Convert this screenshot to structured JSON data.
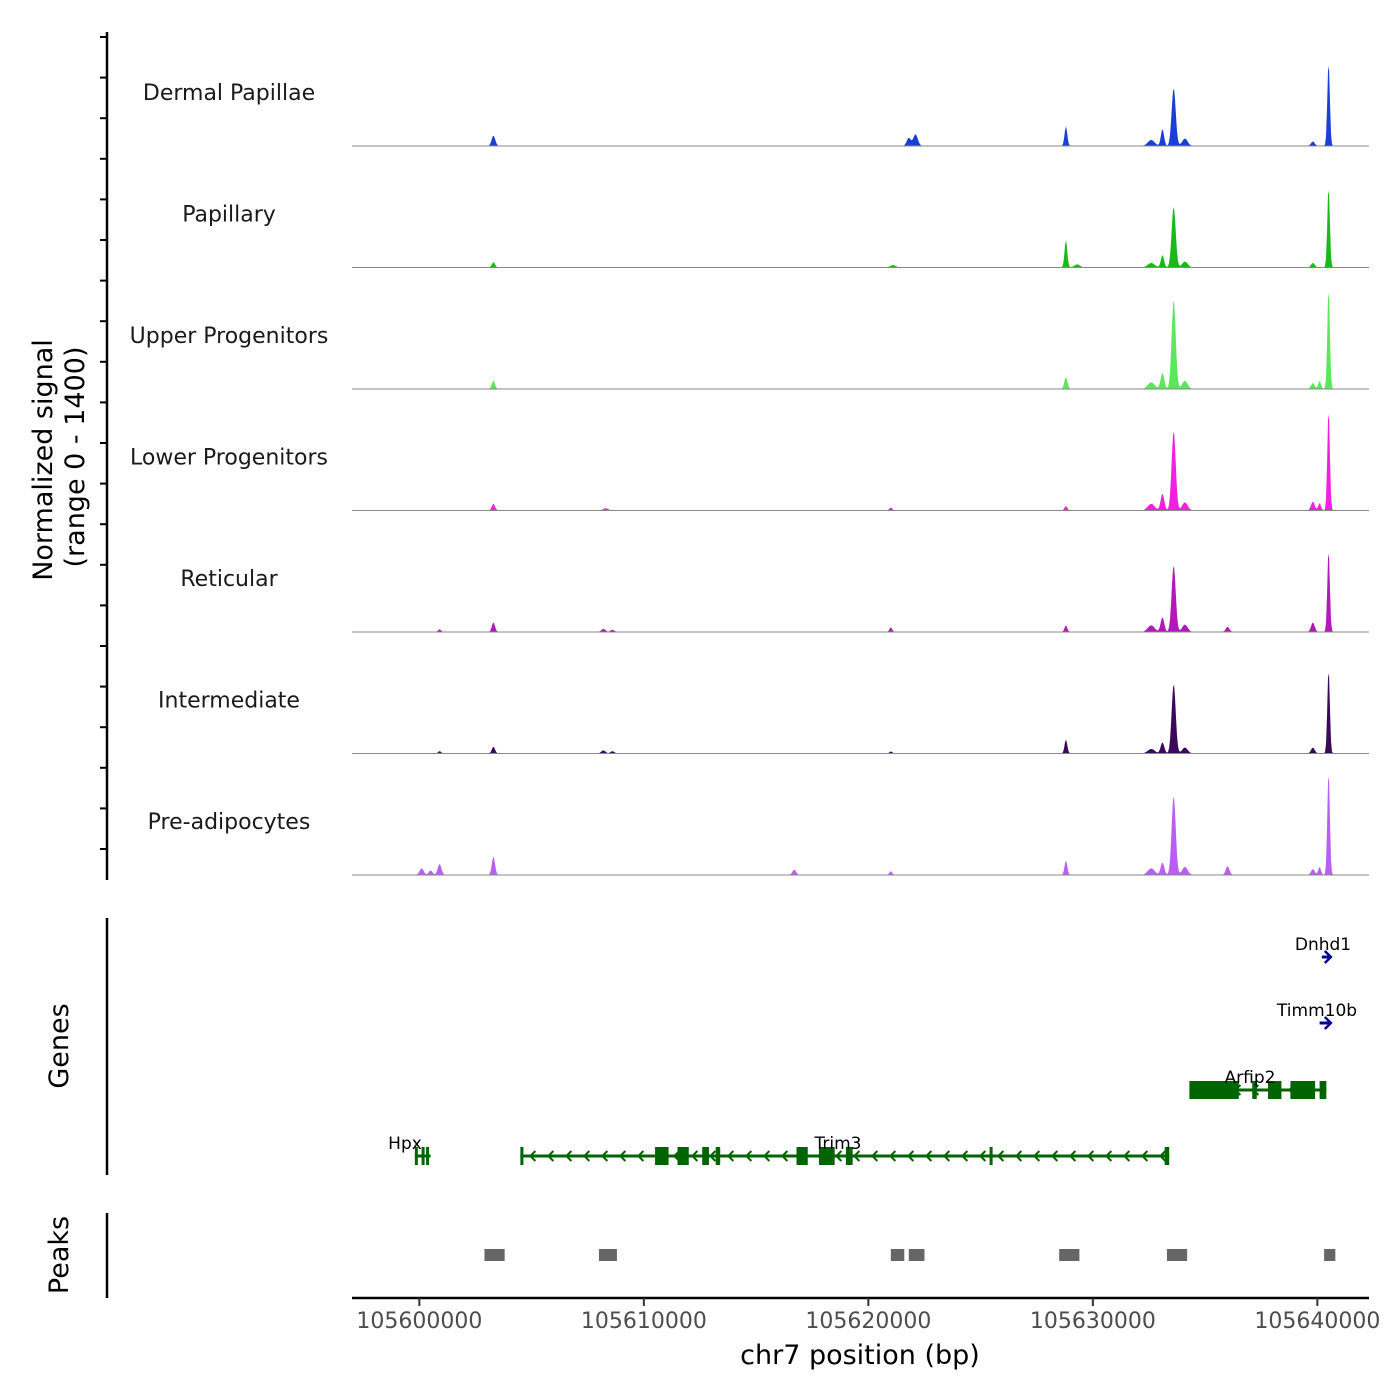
{
  "chart_data": {
    "type": "area",
    "title": "",
    "chromosome": "chr7",
    "xlabel": "chr7 position (bp)",
    "ylabel": "Normalized signal",
    "ylabel_range": "(range 0 - 1400)",
    "xlim": [
      105597000,
      105642300
    ],
    "ylim": [
      0,
      1400
    ],
    "x_ticks": [
      105600000,
      105610000,
      105620000,
      105630000,
      105640000
    ],
    "x_tick_labels": [
      "105600000",
      "105610000",
      "105620000",
      "105630000",
      "105640000"
    ],
    "panel_labels": {
      "genes": "Genes",
      "peaks": "Peaks"
    },
    "tracks": [
      {
        "name": "Dermal Papillae",
        "color": "#1a3fd6",
        "peaks": [
          {
            "pos": 105603300,
            "height": 140,
            "width": 80
          },
          {
            "pos": 105621800,
            "height": 110,
            "width": 90
          },
          {
            "pos": 105622100,
            "height": 160,
            "width": 100
          },
          {
            "pos": 105628800,
            "height": 270,
            "width": 60
          },
          {
            "pos": 105633100,
            "height": 230,
            "width": 70
          },
          {
            "pos": 105633600,
            "height": 800,
            "width": 90
          },
          {
            "pos": 105632600,
            "height": 80,
            "width": 150
          },
          {
            "pos": 105634100,
            "height": 100,
            "width": 120
          },
          {
            "pos": 105639800,
            "height": 60,
            "width": 80
          },
          {
            "pos": 105640500,
            "height": 1160,
            "width": 55
          }
        ]
      },
      {
        "name": "Papillary",
        "color": "#1ab81a",
        "peaks": [
          {
            "pos": 105603300,
            "height": 70,
            "width": 70
          },
          {
            "pos": 105621100,
            "height": 30,
            "width": 120
          },
          {
            "pos": 105628800,
            "height": 380,
            "width": 60
          },
          {
            "pos": 105629300,
            "height": 40,
            "width": 120
          },
          {
            "pos": 105633100,
            "height": 170,
            "width": 70
          },
          {
            "pos": 105633600,
            "height": 840,
            "width": 90
          },
          {
            "pos": 105632600,
            "height": 60,
            "width": 150
          },
          {
            "pos": 105634100,
            "height": 80,
            "width": 120
          },
          {
            "pos": 105639800,
            "height": 60,
            "width": 80
          },
          {
            "pos": 105640500,
            "height": 1120,
            "width": 55
          }
        ]
      },
      {
        "name": "Upper Progenitors",
        "color": "#5ce65c",
        "peaks": [
          {
            "pos": 105603300,
            "height": 110,
            "width": 70
          },
          {
            "pos": 105628800,
            "height": 160,
            "width": 70
          },
          {
            "pos": 105633100,
            "height": 220,
            "width": 80
          },
          {
            "pos": 105633600,
            "height": 1230,
            "width": 90
          },
          {
            "pos": 105632600,
            "height": 90,
            "width": 150
          },
          {
            "pos": 105634100,
            "height": 110,
            "width": 120
          },
          {
            "pos": 105639800,
            "height": 80,
            "width": 80
          },
          {
            "pos": 105640100,
            "height": 110,
            "width": 60
          },
          {
            "pos": 105640500,
            "height": 1400,
            "width": 55
          }
        ]
      },
      {
        "name": "Lower Progenitors",
        "color": "#f020e0",
        "peaks": [
          {
            "pos": 105603300,
            "height": 90,
            "width": 70
          },
          {
            "pos": 105608300,
            "height": 30,
            "width": 100
          },
          {
            "pos": 105621000,
            "height": 40,
            "width": 60
          },
          {
            "pos": 105628800,
            "height": 60,
            "width": 60
          },
          {
            "pos": 105633100,
            "height": 230,
            "width": 80
          },
          {
            "pos": 105633600,
            "height": 1100,
            "width": 90
          },
          {
            "pos": 105632600,
            "height": 90,
            "width": 150
          },
          {
            "pos": 105634100,
            "height": 110,
            "width": 120
          },
          {
            "pos": 105639800,
            "height": 120,
            "width": 80
          },
          {
            "pos": 105640100,
            "height": 100,
            "width": 60
          },
          {
            "pos": 105640500,
            "height": 1400,
            "width": 55
          }
        ]
      },
      {
        "name": "Reticular",
        "color": "#b01ab8",
        "peaks": [
          {
            "pos": 105600900,
            "height": 35,
            "width": 60
          },
          {
            "pos": 105603300,
            "height": 130,
            "width": 70
          },
          {
            "pos": 105608200,
            "height": 40,
            "width": 90
          },
          {
            "pos": 105608600,
            "height": 30,
            "width": 80
          },
          {
            "pos": 105621000,
            "height": 60,
            "width": 60
          },
          {
            "pos": 105628800,
            "height": 90,
            "width": 60
          },
          {
            "pos": 105633100,
            "height": 200,
            "width": 80
          },
          {
            "pos": 105633600,
            "height": 920,
            "width": 90
          },
          {
            "pos": 105632600,
            "height": 90,
            "width": 150
          },
          {
            "pos": 105634100,
            "height": 100,
            "width": 120
          },
          {
            "pos": 105636000,
            "height": 70,
            "width": 80
          },
          {
            "pos": 105639800,
            "height": 130,
            "width": 80
          },
          {
            "pos": 105640500,
            "height": 1140,
            "width": 55
          }
        ]
      },
      {
        "name": "Intermediate",
        "color": "#3a0a5a",
        "peaks": [
          {
            "pos": 105600900,
            "height": 30,
            "width": 60
          },
          {
            "pos": 105603300,
            "height": 90,
            "width": 70
          },
          {
            "pos": 105608200,
            "height": 40,
            "width": 90
          },
          {
            "pos": 105608600,
            "height": 30,
            "width": 80
          },
          {
            "pos": 105621000,
            "height": 25,
            "width": 60
          },
          {
            "pos": 105628800,
            "height": 190,
            "width": 60
          },
          {
            "pos": 105633100,
            "height": 150,
            "width": 80
          },
          {
            "pos": 105633600,
            "height": 960,
            "width": 90
          },
          {
            "pos": 105632600,
            "height": 60,
            "width": 150
          },
          {
            "pos": 105634100,
            "height": 80,
            "width": 120
          },
          {
            "pos": 105639800,
            "height": 80,
            "width": 80
          },
          {
            "pos": 105640500,
            "height": 1170,
            "width": 55
          }
        ]
      },
      {
        "name": "Pre-adipocytes",
        "color": "#b85ef0",
        "peaks": [
          {
            "pos": 105600100,
            "height": 90,
            "width": 90
          },
          {
            "pos": 105600500,
            "height": 60,
            "width": 80
          },
          {
            "pos": 105600900,
            "height": 150,
            "width": 80
          },
          {
            "pos": 105603300,
            "height": 250,
            "width": 70
          },
          {
            "pos": 105616700,
            "height": 70,
            "width": 80
          },
          {
            "pos": 105621000,
            "height": 50,
            "width": 60
          },
          {
            "pos": 105628800,
            "height": 200,
            "width": 60
          },
          {
            "pos": 105633100,
            "height": 170,
            "width": 80
          },
          {
            "pos": 105633600,
            "height": 1090,
            "width": 90
          },
          {
            "pos": 105632600,
            "height": 90,
            "width": 150
          },
          {
            "pos": 105634100,
            "height": 110,
            "width": 120
          },
          {
            "pos": 105636000,
            "height": 120,
            "width": 80
          },
          {
            "pos": 105639800,
            "height": 80,
            "width": 80
          },
          {
            "pos": 105640100,
            "height": 110,
            "width": 60
          },
          {
            "pos": 105640500,
            "height": 1440,
            "width": 55
          }
        ]
      }
    ],
    "genes": [
      {
        "name": "Dnhd1",
        "strand": "+",
        "color": "#00008b",
        "row": 0,
        "start": 105640200,
        "end": 105640600,
        "exons": []
      },
      {
        "name": "Timm10b",
        "strand": "+",
        "color": "#00008b",
        "row": 1,
        "start": 105640100,
        "end": 105640600,
        "exons": []
      },
      {
        "name": "Arfip2",
        "strand": "-",
        "color": "#006400",
        "row": 2,
        "start": 105634300,
        "end": 105640400,
        "exons": [
          [
            105634300,
            105636500
          ],
          [
            105637100,
            105637300
          ],
          [
            105637800,
            105638400
          ],
          [
            105638800,
            105639900
          ],
          [
            105640100,
            105640400
          ]
        ]
      },
      {
        "name": "Hpx",
        "strand": "-",
        "color": "#006400",
        "row": 3,
        "start": 105599800,
        "end": 105600500,
        "exons": [
          [
            105599800,
            105599900
          ],
          [
            105600100,
            105600150
          ],
          [
            105600300,
            105600350
          ]
        ]
      },
      {
        "name": "Trim3",
        "strand": "-",
        "color": "#006400",
        "row": 3,
        "start": 105604500,
        "end": 105633400,
        "exons": [
          [
            105604500,
            105604600
          ],
          [
            105610500,
            105611100
          ],
          [
            105611500,
            105612000
          ],
          [
            105612600,
            105612900
          ],
          [
            105613200,
            105613400
          ],
          [
            105616800,
            105617300
          ],
          [
            105617800,
            105618500
          ],
          [
            105619000,
            105619300
          ],
          [
            105625400,
            105625500
          ],
          [
            105633200,
            105633400
          ]
        ]
      }
    ],
    "peak_regions": [
      [
        105602900,
        105603800
      ],
      [
        105608000,
        105608800
      ],
      [
        105621000,
        105621600
      ],
      [
        105621800,
        105622500
      ],
      [
        105628500,
        105629400
      ],
      [
        105633300,
        105634200
      ],
      [
        105640300,
        105640800
      ]
    ]
  }
}
